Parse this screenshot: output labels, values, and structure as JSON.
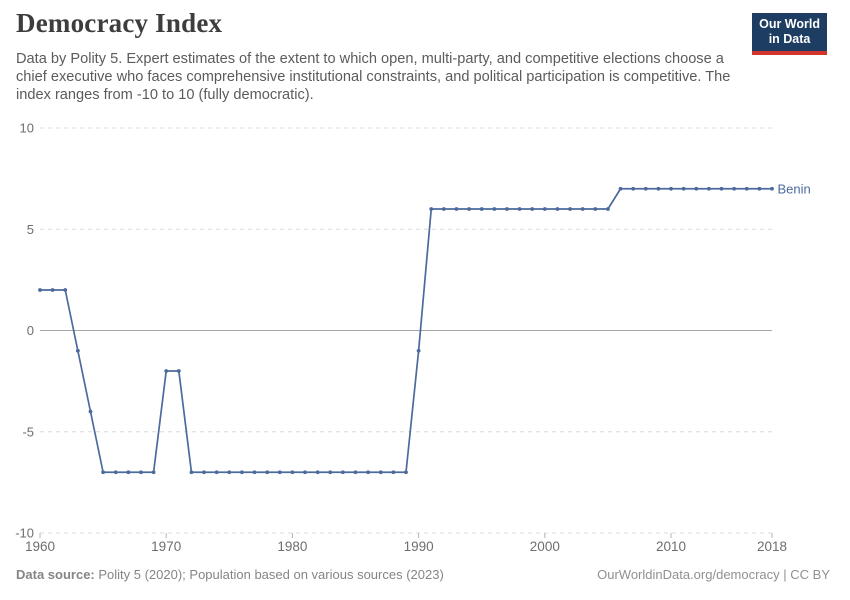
{
  "header": {
    "title": "Democracy Index",
    "subtitle": "Data by Polity 5. Expert estimates of the extent to which open, multi-party, and competitive elections choose a chief executive who faces comprehensive institutional constraints, and political participation is competitive. The index ranges from -10 to 10 (fully democratic).",
    "logo": {
      "line1": "Our World",
      "line2": "in Data",
      "bg_color": "#1d3d63",
      "accent_color": "#d0342c"
    }
  },
  "chart_data": {
    "type": "line",
    "title": "Democracy Index",
    "xlabel": "",
    "ylabel": "",
    "xlim": [
      1960,
      2018
    ],
    "ylim": [
      -10,
      10
    ],
    "grid": "horizontal-dashed",
    "zero_line": true,
    "legend_position": "end-of-line-label",
    "x_ticks": [
      1960,
      1970,
      1980,
      1990,
      2000,
      2010,
      2018
    ],
    "y_ticks": [
      10,
      5,
      0,
      -5,
      -10
    ],
    "series": [
      {
        "name": "Benin",
        "color": "#4C6A9C",
        "x": [
          1960,
          1961,
          1962,
          1963,
          1964,
          1965,
          1966,
          1967,
          1968,
          1969,
          1970,
          1971,
          1972,
          1973,
          1974,
          1975,
          1976,
          1977,
          1978,
          1979,
          1980,
          1981,
          1982,
          1983,
          1984,
          1985,
          1986,
          1987,
          1988,
          1989,
          1990,
          1991,
          1992,
          1993,
          1994,
          1995,
          1996,
          1997,
          1998,
          1999,
          2000,
          2001,
          2002,
          2003,
          2004,
          2005,
          2006,
          2007,
          2008,
          2009,
          2010,
          2011,
          2012,
          2013,
          2014,
          2015,
          2016,
          2017,
          2018
        ],
        "values": [
          2,
          2,
          2,
          -1,
          -4,
          -7,
          -7,
          -7,
          -7,
          -7,
          -2,
          -2,
          -7,
          -7,
          -7,
          -7,
          -7,
          -7,
          -7,
          -7,
          -7,
          -7,
          -7,
          -7,
          -7,
          -7,
          -7,
          -7,
          -7,
          -7,
          -1,
          6,
          6,
          6,
          6,
          6,
          6,
          6,
          6,
          6,
          6,
          6,
          6,
          6,
          6,
          6,
          7,
          7,
          7,
          7,
          7,
          7,
          7,
          7,
          7,
          7,
          7,
          7,
          7
        ]
      }
    ],
    "colors": {
      "gridline": "#dcdcdc",
      "zero_line": "#a8a8a8",
      "tick_label": "#6e6e6e",
      "tick_mark": "#b4b4b4"
    }
  },
  "footer": {
    "source_label": "Data source:",
    "source_text": " Polity 5 (2020); Population based on various sources (2023)",
    "credit": "OurWorldinData.org/democracy | CC BY"
  }
}
